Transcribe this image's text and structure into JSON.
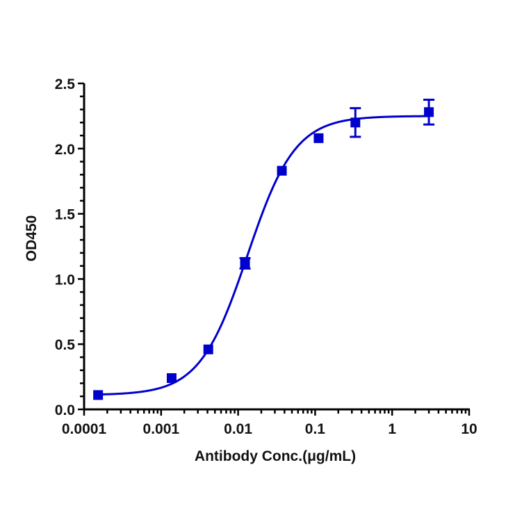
{
  "chart_data": {
    "type": "scatter",
    "title": "",
    "xlabel": "Antibody Conc.(μg/mL)",
    "ylabel": "OD450",
    "xscale": "log",
    "xlim": [
      0.0001,
      10
    ],
    "ylim": [
      0,
      2.5
    ],
    "grid": false,
    "legend": null,
    "x_ticks": [
      "0.0001",
      "0.001",
      "0.01",
      "0.1",
      "1",
      "10"
    ],
    "y_ticks": [
      "0.0",
      "0.5",
      "1.0",
      "1.5",
      "2.0",
      "2.5"
    ],
    "series": [
      {
        "name": "OD450",
        "color": "#0000CC",
        "marker": "square",
        "x": [
          0.000152,
          0.00137,
          0.0041,
          0.0123,
          0.037,
          0.111,
          0.333,
          3.0
        ],
        "y": [
          0.11,
          0.24,
          0.46,
          1.12,
          1.83,
          2.08,
          2.2,
          2.28
        ],
        "error": [
          0.0,
          0.01,
          0.01,
          0.04,
          0.01,
          0.01,
          0.11,
          0.095
        ]
      }
    ],
    "fit": {
      "type": "4PL",
      "bottom": 0.11,
      "top": 2.25,
      "ec50": 0.0132,
      "hill": 1.4,
      "color": "#0000CC",
      "x_range": [
        0.000152,
        3.0
      ]
    }
  }
}
